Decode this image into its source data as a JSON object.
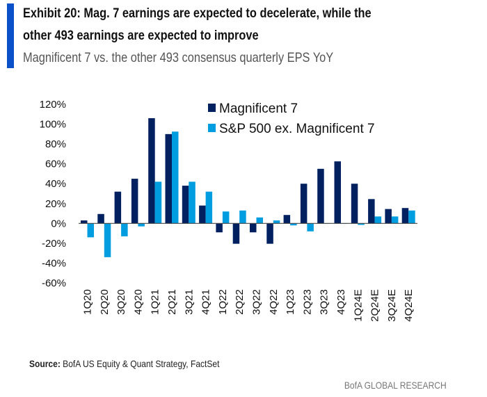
{
  "header": {
    "title_line1": "Exhibit 20: Mag. 7 earnings are expected to decelerate, while the",
    "title_line2": "other 493 earnings are expected to improve",
    "subtitle": "Magnificent 7 vs. the other 493 consensus quarterly EPS YoY"
  },
  "footer": {
    "source_label": "Source:",
    "source_text": "BofA US Equity & Quant Strategy, FactSet",
    "brand": "BofA GLOBAL RESEARCH"
  },
  "colors": {
    "accent": "#0a50c8",
    "mag7": "#002060",
    "ex_mag7": "#009ee0"
  },
  "chart_data": {
    "type": "bar",
    "title": "",
    "xlabel": "",
    "ylabel": "",
    "ylim": [
      -60,
      120
    ],
    "yticks": [
      120,
      100,
      80,
      60,
      40,
      20,
      0,
      -20,
      -40,
      -60
    ],
    "ytick_labels": [
      "120%",
      "100%",
      "80%",
      "60%",
      "40%",
      "20%",
      "0%",
      "-20%",
      "-40%",
      "-60%"
    ],
    "grid": false,
    "legend_position": "top-right",
    "categories": [
      "1Q20",
      "2Q20",
      "3Q20",
      "4Q20",
      "1Q21",
      "2Q21",
      "3Q21",
      "4Q21",
      "1Q22",
      "2Q22",
      "3Q22",
      "4Q22",
      "1Q23",
      "2Q23",
      "3Q23",
      "4Q23",
      "1Q24E",
      "2Q24E",
      "3Q24E",
      "4Q24E"
    ],
    "series": [
      {
        "name": "Magnificent 7",
        "values": [
          3,
          9.5,
          32,
          45,
          106,
          90,
          38,
          18,
          -9,
          -20.5,
          -9,
          -20.5,
          8.5,
          40,
          55,
          62.5,
          40,
          24.5,
          14.5,
          15.5
        ]
      },
      {
        "name": "S&P 500 ex. Magnificent 7",
        "values": [
          -14,
          -34,
          -13,
          -3,
          42,
          92.5,
          42,
          32,
          12,
          13,
          6,
          3,
          -2,
          -8,
          0,
          0,
          -1.5,
          7,
          7,
          13
        ]
      }
    ]
  }
}
